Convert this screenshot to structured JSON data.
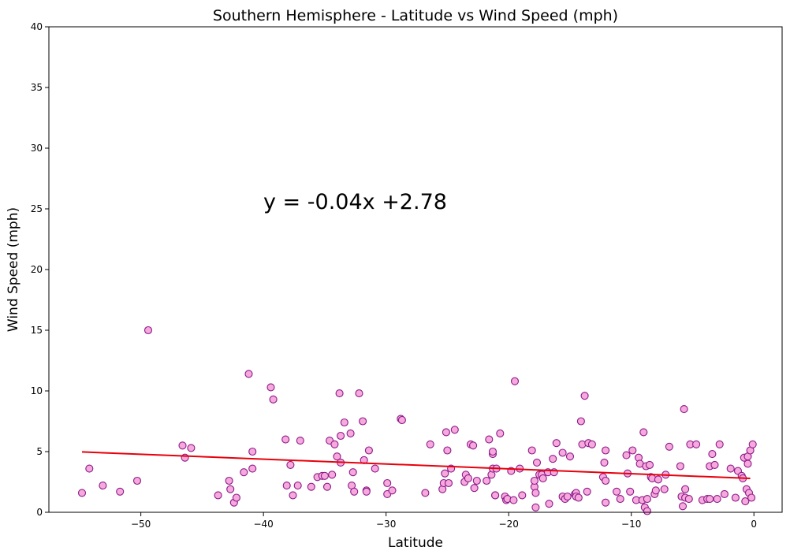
{
  "chart_data": {
    "type": "scatter",
    "title": "Southern Hemisphere - Latitude vs Wind Speed (mph)",
    "xlabel": "Latitude",
    "ylabel": "Wind Speed (mph)",
    "xlim": [
      -57.5,
      2.3
    ],
    "ylim": [
      0,
      40
    ],
    "xticks": [
      -50,
      -40,
      -30,
      -20,
      -10,
      0
    ],
    "xtick_labels": [
      "−50",
      "−40",
      "−30",
      "−20",
      "−10",
      "0"
    ],
    "yticks": [
      0,
      5,
      10,
      15,
      20,
      25,
      30,
      35,
      40
    ],
    "ytick_labels": [
      "0",
      "5",
      "10",
      "15",
      "20",
      "25",
      "30",
      "35",
      "40"
    ],
    "grid": false,
    "marker_face_color": "#f7a8dc",
    "marker_edge_color": "#8b1a89",
    "regression": {
      "label": "y = -0.04x +2.78",
      "slope": -0.04,
      "intercept": 2.78,
      "x_range": [
        -54.8,
        -0.3
      ],
      "color": "#e8000b"
    },
    "points": [
      [
        -54.8,
        1.6
      ],
      [
        -54.2,
        3.6
      ],
      [
        -53.1,
        2.2
      ],
      [
        -51.7,
        1.7
      ],
      [
        -50.3,
        2.6
      ],
      [
        -49.4,
        15.0
      ],
      [
        -46.6,
        5.5
      ],
      [
        -46.4,
        4.5
      ],
      [
        -45.9,
        5.3
      ],
      [
        -43.7,
        1.4
      ],
      [
        -42.8,
        2.6
      ],
      [
        -42.7,
        1.9
      ],
      [
        -42.4,
        0.8
      ],
      [
        -42.2,
        1.2
      ],
      [
        -41.6,
        3.3
      ],
      [
        -41.2,
        11.4
      ],
      [
        -40.9,
        5.0
      ],
      [
        -40.9,
        3.6
      ],
      [
        -39.4,
        10.3
      ],
      [
        -39.2,
        9.3
      ],
      [
        -38.2,
        6.0
      ],
      [
        -38.1,
        2.2
      ],
      [
        -37.8,
        3.9
      ],
      [
        -37.6,
        1.4
      ],
      [
        -37.2,
        2.2
      ],
      [
        -37.0,
        5.9
      ],
      [
        -36.1,
        2.1
      ],
      [
        -35.6,
        2.9
      ],
      [
        -35.2,
        3.0
      ],
      [
        -35.0,
        3.0
      ],
      [
        -34.8,
        2.1
      ],
      [
        -34.6,
        5.9
      ],
      [
        -34.4,
        3.1
      ],
      [
        -34.2,
        5.6
      ],
      [
        -34.0,
        4.6
      ],
      [
        -33.8,
        9.8
      ],
      [
        -33.7,
        4.1
      ],
      [
        -33.7,
        6.3
      ],
      [
        -33.4,
        7.4
      ],
      [
        -32.9,
        6.5
      ],
      [
        -32.8,
        2.2
      ],
      [
        -32.7,
        3.3
      ],
      [
        -32.6,
        1.7
      ],
      [
        -32.2,
        9.8
      ],
      [
        -31.9,
        7.5
      ],
      [
        -31.8,
        4.3
      ],
      [
        -31.6,
        1.8
      ],
      [
        -31.6,
        1.7
      ],
      [
        -31.4,
        5.1
      ],
      [
        -30.9,
        3.6
      ],
      [
        -29.9,
        1.5
      ],
      [
        -29.9,
        2.4
      ],
      [
        -29.5,
        1.8
      ],
      [
        -28.8,
        7.7
      ],
      [
        -28.7,
        7.6
      ],
      [
        -26.8,
        1.6
      ],
      [
        -26.4,
        5.6
      ],
      [
        -25.4,
        1.9
      ],
      [
        -25.3,
        2.4
      ],
      [
        -25.2,
        3.2
      ],
      [
        -25.1,
        6.6
      ],
      [
        -25.0,
        5.1
      ],
      [
        -24.9,
        2.4
      ],
      [
        -24.7,
        3.6
      ],
      [
        -24.4,
        6.8
      ],
      [
        -23.6,
        2.5
      ],
      [
        -23.5,
        3.1
      ],
      [
        -23.3,
        2.8
      ],
      [
        -23.1,
        5.6
      ],
      [
        -22.9,
        5.5
      ],
      [
        -22.8,
        2.0
      ],
      [
        -22.6,
        2.6
      ],
      [
        -21.8,
        2.6
      ],
      [
        -21.6,
        6.0
      ],
      [
        -21.4,
        3.1
      ],
      [
        -21.3,
        4.8
      ],
      [
        -21.3,
        5.0
      ],
      [
        -21.3,
        3.6
      ],
      [
        -21.1,
        1.4
      ],
      [
        -21.1,
        1.4
      ],
      [
        -21.0,
        3.6
      ],
      [
        -20.7,
        6.5
      ],
      [
        -20.3,
        1.3
      ],
      [
        -20.2,
        1.0
      ],
      [
        -20.1,
        1.1
      ],
      [
        -19.8,
        3.4
      ],
      [
        -19.6,
        1.0
      ],
      [
        -19.5,
        10.8
      ],
      [
        -19.1,
        3.6
      ],
      [
        -18.9,
        1.4
      ],
      [
        -18.1,
        5.1
      ],
      [
        -17.9,
        2.1
      ],
      [
        -17.9,
        2.6
      ],
      [
        -17.8,
        0.4
      ],
      [
        -17.8,
        1.6
      ],
      [
        -17.7,
        4.1
      ],
      [
        -17.5,
        3.1
      ],
      [
        -17.3,
        3.1
      ],
      [
        -17.2,
        2.8
      ],
      [
        -16.8,
        3.3
      ],
      [
        -16.7,
        0.7
      ],
      [
        -16.4,
        4.4
      ],
      [
        -16.3,
        3.3
      ],
      [
        -16.1,
        5.7
      ],
      [
        -15.6,
        4.9
      ],
      [
        -15.6,
        1.3
      ],
      [
        -15.4,
        1.1
      ],
      [
        -15.2,
        1.3
      ],
      [
        -15.0,
        4.6
      ],
      [
        -14.6,
        1.5
      ],
      [
        -14.5,
        1.6
      ],
      [
        -14.5,
        1.3
      ],
      [
        -14.3,
        1.2
      ],
      [
        -14.1,
        7.5
      ],
      [
        -14.0,
        5.6
      ],
      [
        -13.8,
        9.6
      ],
      [
        -13.6,
        1.7
      ],
      [
        -13.5,
        5.7
      ],
      [
        -13.2,
        5.6
      ],
      [
        -12.3,
        2.9
      ],
      [
        -12.2,
        4.1
      ],
      [
        -12.1,
        5.1
      ],
      [
        -12.1,
        2.6
      ],
      [
        -12.1,
        0.8
      ],
      [
        -11.2,
        1.7
      ],
      [
        -10.9,
        1.1
      ],
      [
        -10.4,
        4.7
      ],
      [
        -10.3,
        3.2
      ],
      [
        -10.1,
        1.7
      ],
      [
        -9.9,
        5.1
      ],
      [
        -9.6,
        1.0
      ],
      [
        -9.4,
        4.5
      ],
      [
        -9.3,
        4.0
      ],
      [
        -9.1,
        1.0
      ],
      [
        -9.0,
        6.6
      ],
      [
        -8.9,
        0.4
      ],
      [
        -8.8,
        3.8
      ],
      [
        -8.7,
        1.1
      ],
      [
        -8.7,
        0.1
      ],
      [
        -8.5,
        3.9
      ],
      [
        -8.4,
        2.9
      ],
      [
        -8.3,
        2.8
      ],
      [
        -8.1,
        1.5
      ],
      [
        -8.0,
        1.8
      ],
      [
        -7.8,
        2.7
      ],
      [
        -7.3,
        1.9
      ],
      [
        -7.2,
        3.1
      ],
      [
        -6.9,
        5.4
      ],
      [
        -6.0,
        3.8
      ],
      [
        -5.9,
        1.3
      ],
      [
        -5.8,
        0.5
      ],
      [
        -5.7,
        8.5
      ],
      [
        -5.6,
        1.9
      ],
      [
        -5.6,
        1.2
      ],
      [
        -5.3,
        1.1
      ],
      [
        -5.2,
        5.6
      ],
      [
        -4.7,
        5.6
      ],
      [
        -4.2,
        1.0
      ],
      [
        -3.8,
        1.1
      ],
      [
        -3.6,
        1.1
      ],
      [
        -3.6,
        3.8
      ],
      [
        -3.4,
        4.8
      ],
      [
        -3.2,
        3.9
      ],
      [
        -3.0,
        1.1
      ],
      [
        -2.8,
        5.6
      ],
      [
        -2.4,
        1.5
      ],
      [
        -1.9,
        3.6
      ],
      [
        -1.5,
        1.2
      ],
      [
        -1.3,
        3.4
      ],
      [
        -1.0,
        3.0
      ],
      [
        -0.9,
        2.8
      ],
      [
        -0.8,
        4.5
      ],
      [
        -0.7,
        0.9
      ],
      [
        -0.6,
        1.9
      ],
      [
        -0.5,
        4.6
      ],
      [
        -0.5,
        4.0
      ],
      [
        -0.4,
        1.6
      ],
      [
        -0.3,
        5.1
      ],
      [
        -0.2,
        1.2
      ],
      [
        -0.1,
        5.6
      ]
    ]
  }
}
